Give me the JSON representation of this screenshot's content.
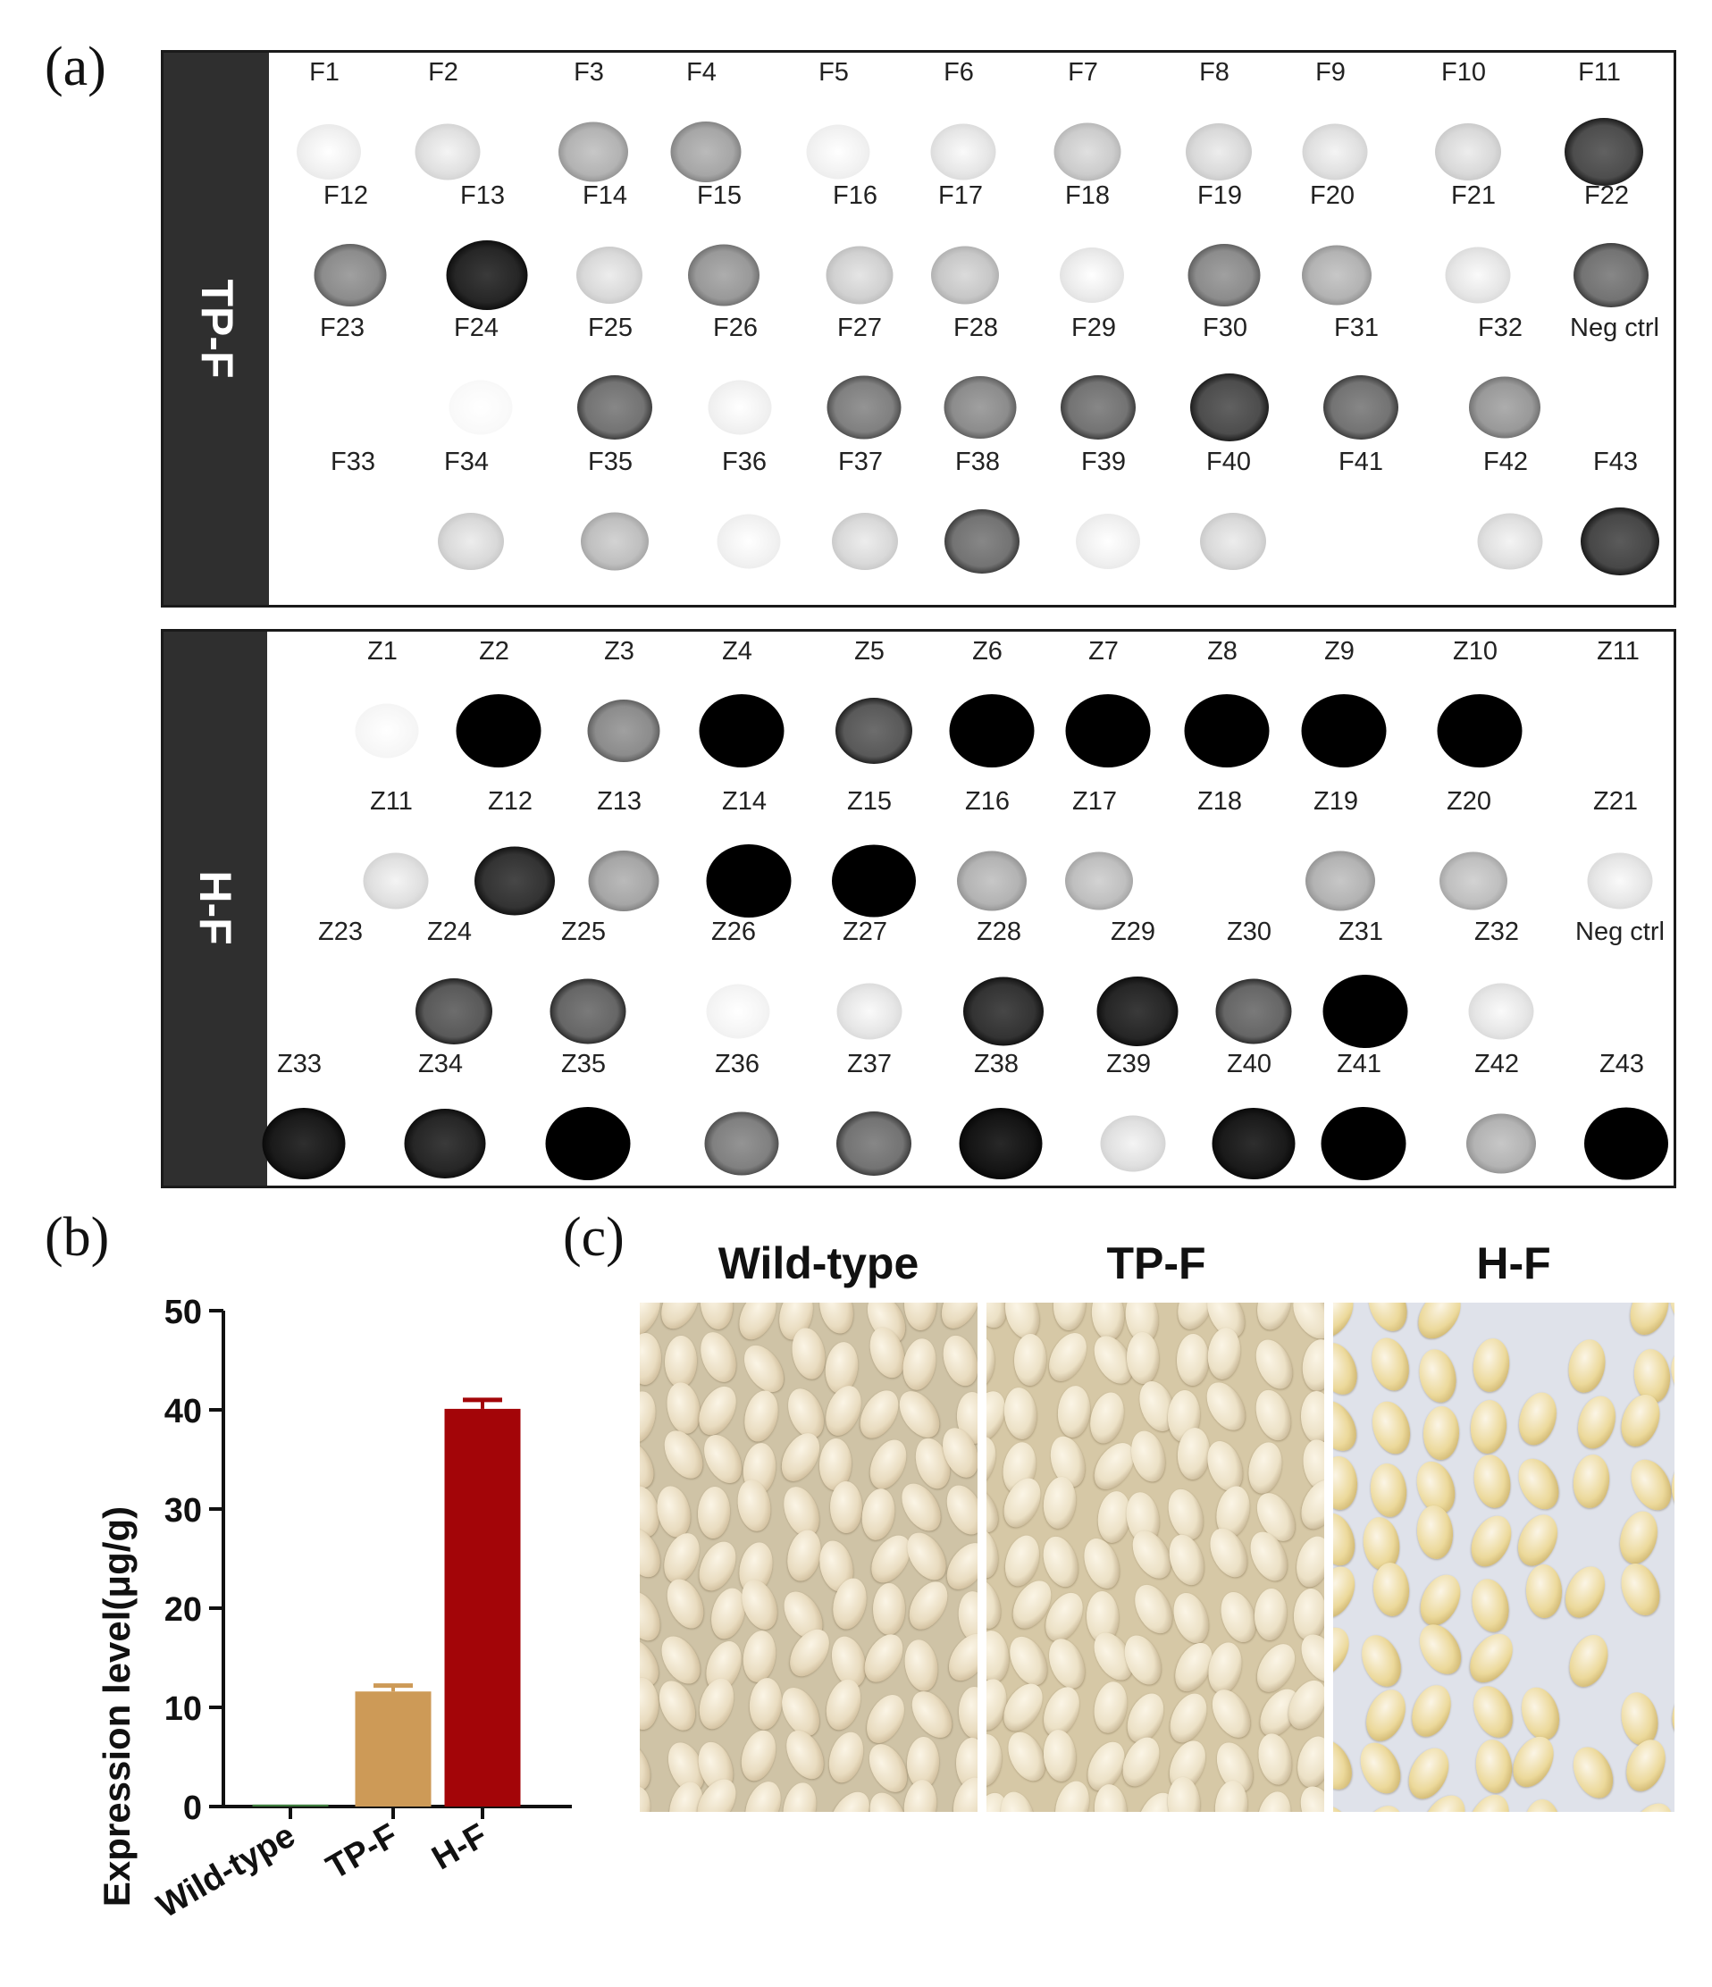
{
  "panels": {
    "a": "(a)",
    "b": "(b)",
    "c": "(c)"
  },
  "blot_tp": {
    "label": "TP-F",
    "rows": [
      [
        "F1",
        "F2",
        "F3",
        "F4",
        "F5",
        "F6",
        "F7",
        "F8",
        "F9",
        "F10",
        "F11"
      ],
      [
        "F12",
        "F13",
        "F14",
        "F15",
        "F16",
        "F17",
        "F18",
        "F19",
        "F20",
        "F21",
        "F22"
      ],
      [
        "F23",
        "F24",
        "F25",
        "F26",
        "F27",
        "F28",
        "F29",
        "F30",
        "F31",
        "F32",
        "Neg ctrl"
      ],
      [
        "F33",
        "F34",
        "F35",
        "F36",
        "F37",
        "F38",
        "F39",
        "F40",
        "F41",
        "F42",
        "F43"
      ]
    ],
    "intensity": [
      [
        0.06,
        0.12,
        0.3,
        0.35,
        0.05,
        0.1,
        0.2,
        0.15,
        0.12,
        0.15,
        0.7
      ],
      [
        0.45,
        0.85,
        0.15,
        0.4,
        0.18,
        0.22,
        0.08,
        0.45,
        0.3,
        0.1,
        0.55
      ],
      [
        0.0,
        0.02,
        0.55,
        0.05,
        0.5,
        0.45,
        0.55,
        0.7,
        0.55,
        0.4,
        0.0
      ],
      [
        0.0,
        0.15,
        0.25,
        0.05,
        0.15,
        0.55,
        0.06,
        0.15,
        0.0,
        0.12,
        0.72
      ]
    ]
  },
  "blot_h": {
    "label": "H-F",
    "rows": [
      [
        "Z1",
        "Z2",
        "Z3",
        "Z4",
        "Z5",
        "Z6",
        "Z7",
        "Z8",
        "Z9",
        "Z10",
        "Z11"
      ],
      [
        "Z11",
        "Z12",
        "Z13",
        "Z14",
        "Z15",
        "Z16",
        "Z17",
        "Z18",
        "Z19",
        "Z20",
        "Z21"
      ],
      [
        "Z23",
        "Z24",
        "Z25",
        "Z26",
        "Z27",
        "Z28",
        "Z29",
        "Z30",
        "Z31",
        "Z32",
        "Neg ctrl"
      ],
      [
        "Z33",
        "Z34",
        "Z35",
        "Z36",
        "Z37",
        "Z38",
        "Z39",
        "Z40",
        "Z41",
        "Z42",
        "Z43"
      ]
    ],
    "intensity": [
      [
        0.03,
        1.0,
        0.45,
        1.0,
        0.65,
        0.98,
        1.0,
        1.0,
        1.0,
        1.0,
        0.0
      ],
      [
        0.12,
        0.8,
        0.35,
        1.0,
        0.95,
        0.3,
        0.25,
        0.0,
        0.3,
        0.25,
        0.1
      ],
      [
        0.0,
        0.65,
        0.6,
        0.04,
        0.1,
        0.8,
        0.85,
        0.6,
        1.0,
        0.1,
        0.0
      ],
      [
        0.9,
        0.85,
        1.0,
        0.5,
        0.55,
        0.92,
        0.12,
        0.9,
        1.0,
        0.3,
        0.95
      ]
    ]
  },
  "chart_data": {
    "type": "bar",
    "categories": [
      "Wild-type",
      "TP-F",
      "H-F"
    ],
    "values": [
      0.2,
      11.6,
      40.1
    ],
    "errors": [
      0,
      0.6,
      0.9
    ],
    "ylabel": "Expression level(μg/g)",
    "xlabel": "",
    "ylim": [
      0,
      50
    ],
    "yticks": [
      0,
      10,
      20,
      30,
      40,
      50
    ],
    "colors": [
      "#3c7a3c",
      "#cd9a57",
      "#a30508"
    ]
  },
  "photos": {
    "titles": [
      "Wild-type",
      "TP-F",
      "H-F"
    ]
  }
}
